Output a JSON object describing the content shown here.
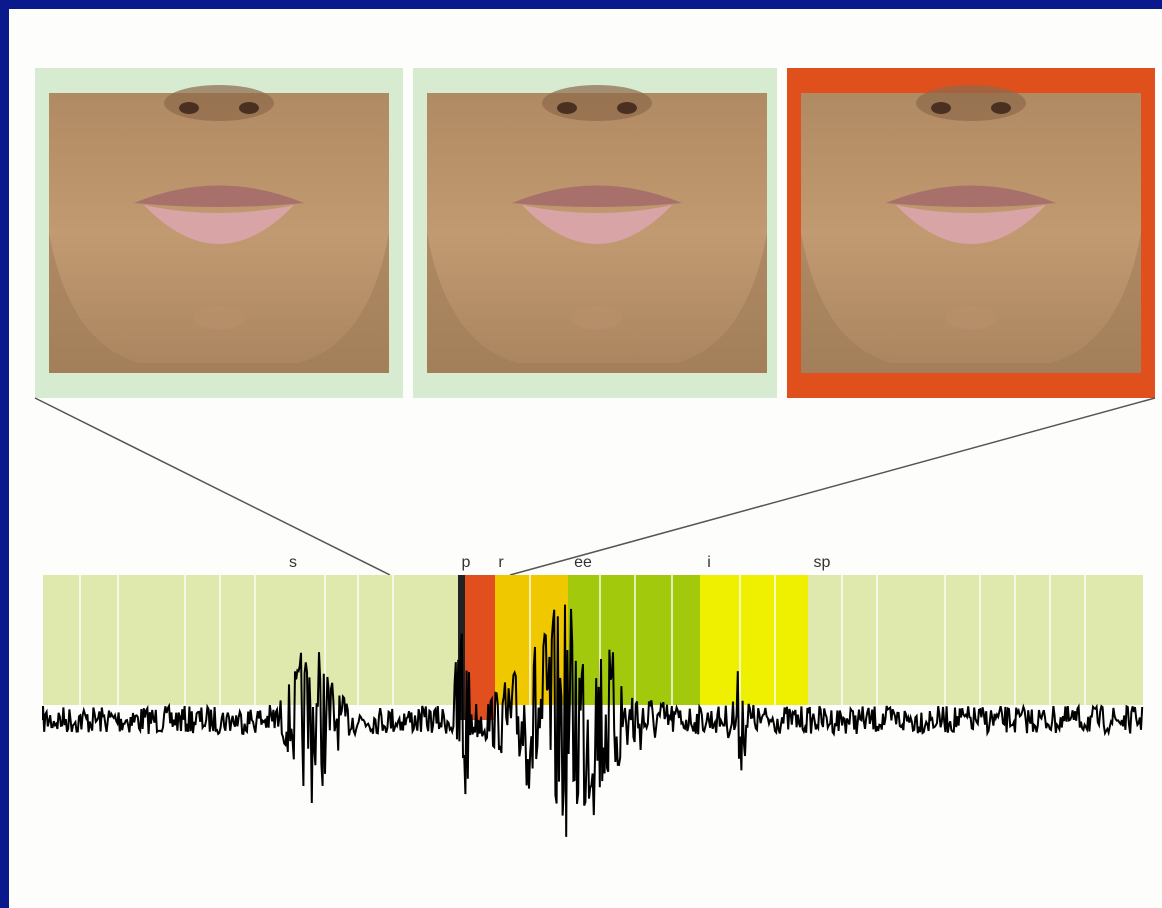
{
  "phonemes": [
    "s",
    "p",
    "r",
    "ee",
    "i",
    "sp"
  ]
}
